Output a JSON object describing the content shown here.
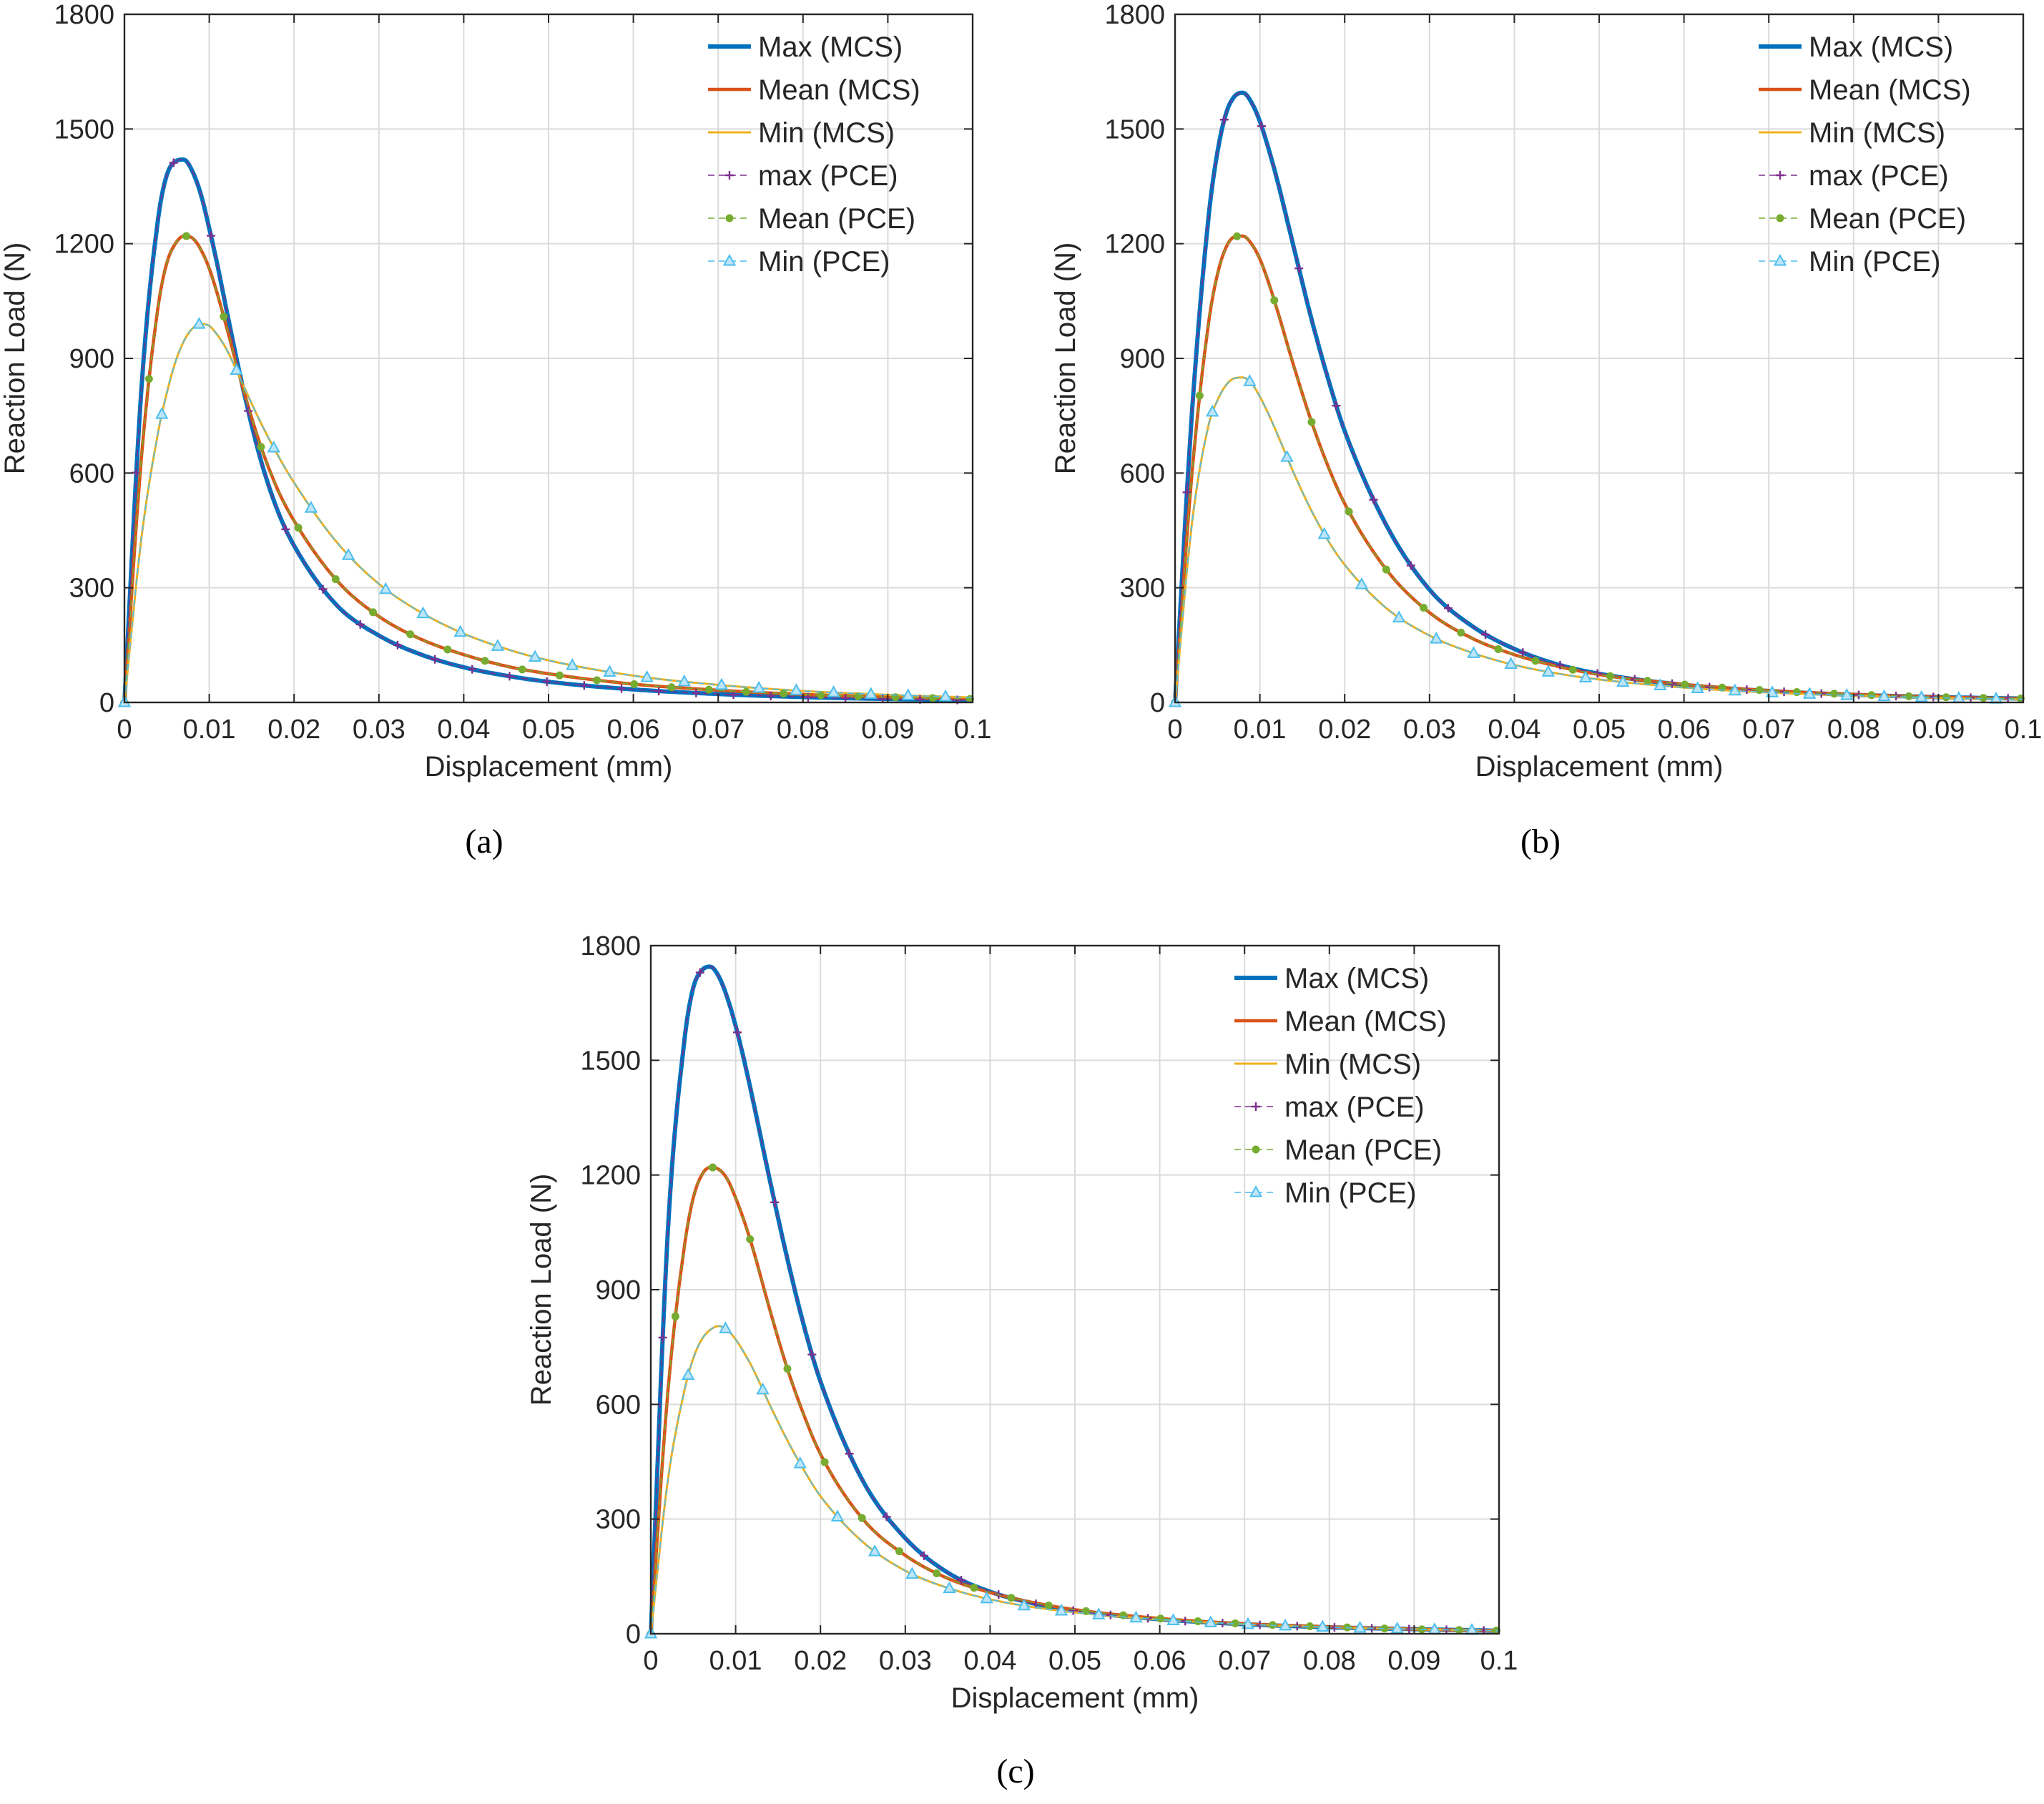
{
  "chart_data": [
    {
      "type": "line",
      "caption": "(a)",
      "xlabel": "Displacement (mm)",
      "ylabel": "Reaction Load (N)",
      "xlim": [
        0,
        0.1
      ],
      "ylim": [
        0,
        1800
      ],
      "xticks": [
        "0",
        "0.01",
        "0.02",
        "0.03",
        "0.04",
        "0.05",
        "0.06",
        "0.07",
        "0.08",
        "0.09",
        "0.1"
      ],
      "yticks": [
        "0",
        "300",
        "600",
        "900",
        "1200",
        "1500",
        "1800"
      ],
      "grid": true,
      "legend_position": "top-right",
      "x": [
        0,
        0.002,
        0.004,
        0.005,
        0.006,
        0.007,
        0.008,
        0.009,
        0.01,
        0.011,
        0.012,
        0.014,
        0.016,
        0.018,
        0.02,
        0.025,
        0.03,
        0.035,
        0.04,
        0.045,
        0.05,
        0.06,
        0.07,
        0.08,
        0.09,
        0.1
      ],
      "series": [
        {
          "name": "Max (MCS)",
          "kind": "mcs",
          "color": "#0072BD",
          "values": [
            0,
            820,
            1270,
            1380,
            1415,
            1420,
            1390,
            1330,
            1240,
            1140,
            1030,
            820,
            640,
            505,
            410,
            255,
            175,
            125,
            92,
            70,
            54,
            34,
            22,
            14,
            9,
            6
          ]
        },
        {
          "name": "Mean (MCS)",
          "kind": "mcs",
          "color": "#D95319",
          "values": [
            0,
            640,
            1040,
            1150,
            1200,
            1220,
            1215,
            1185,
            1135,
            1065,
            985,
            820,
            675,
            560,
            475,
            320,
            225,
            165,
            125,
            95,
            75,
            48,
            32,
            21,
            14,
            9
          ]
        },
        {
          "name": "Min (MCS)",
          "kind": "mcs",
          "color": "#EDB120",
          "values": [
            0,
            430,
            710,
            810,
            890,
            945,
            978,
            990,
            985,
            960,
            925,
            830,
            735,
            650,
            575,
            420,
            310,
            235,
            180,
            140,
            110,
            70,
            46,
            30,
            20,
            13
          ]
        },
        {
          "name": "max (PCE)",
          "kind": "pce",
          "marker": "plus",
          "color": "#7E2F8E",
          "values": [
            0,
            820,
            1270,
            1380,
            1415,
            1420,
            1390,
            1330,
            1240,
            1140,
            1030,
            820,
            640,
            505,
            410,
            255,
            175,
            125,
            92,
            70,
            54,
            34,
            22,
            14,
            9,
            6
          ]
        },
        {
          "name": "Mean (PCE)",
          "kind": "pce",
          "marker": "dot",
          "color": "#77AC30",
          "values": [
            0,
            640,
            1040,
            1150,
            1200,
            1220,
            1215,
            1185,
            1135,
            1065,
            985,
            820,
            675,
            560,
            475,
            320,
            225,
            165,
            125,
            95,
            75,
            48,
            32,
            21,
            14,
            9
          ]
        },
        {
          "name": "Min (PCE)",
          "kind": "pce",
          "marker": "triangle",
          "color": "#4DBEEE",
          "values": [
            0,
            430,
            710,
            810,
            890,
            945,
            978,
            990,
            985,
            960,
            925,
            830,
            735,
            650,
            575,
            420,
            310,
            235,
            180,
            140,
            110,
            70,
            46,
            30,
            20,
            13
          ]
        }
      ]
    },
    {
      "type": "line",
      "caption": "(b)",
      "xlabel": "Displacement (mm)",
      "ylabel": "Reaction Load (N)",
      "xlim": [
        0,
        0.1
      ],
      "ylim": [
        0,
        1800
      ],
      "xticks": [
        "0",
        "0.01",
        "0.02",
        "0.03",
        "0.04",
        "0.05",
        "0.06",
        "0.07",
        "0.08",
        "0.09",
        "0.1"
      ],
      "yticks": [
        "0",
        "300",
        "600",
        "900",
        "1200",
        "1500",
        "1800"
      ],
      "grid": true,
      "legend_position": "top-right",
      "x": [
        0,
        0.002,
        0.004,
        0.005,
        0.006,
        0.007,
        0.008,
        0.009,
        0.01,
        0.011,
        0.012,
        0.014,
        0.016,
        0.018,
        0.02,
        0.025,
        0.03,
        0.035,
        0.04,
        0.045,
        0.05,
        0.06,
        0.07,
        0.08,
        0.09,
        0.1
      ],
      "series": [
        {
          "name": "Max (MCS)",
          "kind": "mcs",
          "color": "#0072BD",
          "values": [
            0,
            760,
            1280,
            1440,
            1540,
            1585,
            1595,
            1570,
            1520,
            1450,
            1370,
            1190,
            1010,
            850,
            710,
            460,
            295,
            200,
            140,
            100,
            75,
            46,
            30,
            20,
            14,
            10
          ]
        },
        {
          "name": "Mean (MCS)",
          "kind": "mcs",
          "color": "#D95319",
          "values": [
            0,
            600,
            1000,
            1120,
            1190,
            1218,
            1220,
            1200,
            1160,
            1100,
            1030,
            880,
            740,
            620,
            520,
            345,
            235,
            168,
            125,
            95,
            73,
            47,
            31,
            21,
            14,
            10
          ]
        },
        {
          "name": "Min (MCS)",
          "kind": "mcs",
          "color": "#EDB120",
          "values": [
            0,
            470,
            730,
            790,
            830,
            848,
            850,
            835,
            800,
            755,
            705,
            600,
            505,
            425,
            360,
            245,
            175,
            130,
            98,
            76,
            60,
            39,
            26,
            18,
            12,
            8
          ]
        },
        {
          "name": "max (PCE)",
          "kind": "pce",
          "marker": "plus",
          "color": "#7E2F8E",
          "values": [
            0,
            760,
            1280,
            1440,
            1540,
            1585,
            1595,
            1570,
            1520,
            1450,
            1370,
            1190,
            1010,
            850,
            710,
            460,
            295,
            200,
            140,
            100,
            75,
            46,
            30,
            20,
            14,
            10
          ]
        },
        {
          "name": "Mean (PCE)",
          "kind": "pce",
          "marker": "dot",
          "color": "#77AC30",
          "values": [
            0,
            600,
            1000,
            1120,
            1190,
            1218,
            1220,
            1200,
            1160,
            1100,
            1030,
            880,
            740,
            620,
            520,
            345,
            235,
            168,
            125,
            95,
            73,
            47,
            31,
            21,
            14,
            10
          ]
        },
        {
          "name": "Min (PCE)",
          "kind": "pce",
          "marker": "triangle",
          "color": "#4DBEEE",
          "values": [
            0,
            470,
            730,
            790,
            830,
            848,
            850,
            835,
            800,
            755,
            705,
            600,
            505,
            425,
            360,
            245,
            175,
            130,
            98,
            76,
            60,
            39,
            26,
            18,
            12,
            8
          ]
        }
      ]
    },
    {
      "type": "line",
      "caption": "(c)",
      "xlabel": "Displacement (mm)",
      "ylabel": "Reaction Load (N)",
      "xlim": [
        0,
        0.1
      ],
      "ylim": [
        0,
        1800
      ],
      "xticks": [
        "0",
        "0.01",
        "0.02",
        "0.03",
        "0.04",
        "0.05",
        "0.06",
        "0.07",
        "0.08",
        "0.09",
        "0.1"
      ],
      "yticks": [
        "0",
        "300",
        "600",
        "900",
        "1200",
        "1500",
        "1800"
      ],
      "grid": true,
      "legend_position": "top-right",
      "x": [
        0,
        0.002,
        0.004,
        0.005,
        0.006,
        0.007,
        0.008,
        0.009,
        0.01,
        0.011,
        0.012,
        0.014,
        0.016,
        0.018,
        0.02,
        0.025,
        0.03,
        0.035,
        0.04,
        0.045,
        0.05,
        0.06,
        0.07,
        0.08,
        0.09,
        0.1
      ],
      "series": [
        {
          "name": "Max (MCS)",
          "kind": "mcs",
          "color": "#0072BD",
          "values": [
            0,
            1050,
            1560,
            1690,
            1735,
            1745,
            1720,
            1665,
            1590,
            1500,
            1400,
            1190,
            990,
            810,
            660,
            400,
            250,
            160,
            110,
            80,
            60,
            38,
            25,
            17,
            12,
            8
          ]
        },
        {
          "name": "Mean (MCS)",
          "kind": "mcs",
          "color": "#D95319",
          "values": [
            0,
            630,
            1020,
            1140,
            1200,
            1220,
            1215,
            1190,
            1140,
            1080,
            1010,
            850,
            700,
            575,
            470,
            300,
            205,
            145,
            108,
            82,
            63,
            40,
            26,
            18,
            12,
            8
          ]
        },
        {
          "name": "Min (MCS)",
          "kind": "mcs",
          "color": "#EDB120",
          "values": [
            0,
            400,
            640,
            720,
            770,
            795,
            805,
            795,
            770,
            735,
            695,
            600,
            510,
            430,
            360,
            240,
            165,
            120,
            90,
            70,
            56,
            37,
            25,
            17,
            12,
            8
          ]
        },
        {
          "name": "max (PCE)",
          "kind": "pce",
          "marker": "plus",
          "color": "#7E2F8E",
          "values": [
            0,
            1050,
            1560,
            1690,
            1735,
            1745,
            1720,
            1665,
            1590,
            1500,
            1400,
            1190,
            990,
            810,
            660,
            400,
            250,
            160,
            110,
            80,
            60,
            38,
            25,
            17,
            12,
            8
          ]
        },
        {
          "name": "Mean (PCE)",
          "kind": "pce",
          "marker": "dot",
          "color": "#77AC30",
          "values": [
            0,
            630,
            1020,
            1140,
            1200,
            1220,
            1215,
            1190,
            1140,
            1080,
            1010,
            850,
            700,
            575,
            470,
            300,
            205,
            145,
            108,
            82,
            63,
            40,
            26,
            18,
            12,
            8
          ]
        },
        {
          "name": "Min (PCE)",
          "kind": "pce",
          "marker": "triangle",
          "color": "#4DBEEE",
          "values": [
            0,
            400,
            640,
            720,
            770,
            795,
            805,
            795,
            770,
            735,
            695,
            600,
            510,
            430,
            360,
            240,
            165,
            120,
            90,
            70,
            56,
            37,
            25,
            17,
            12,
            8
          ]
        }
      ]
    }
  ]
}
